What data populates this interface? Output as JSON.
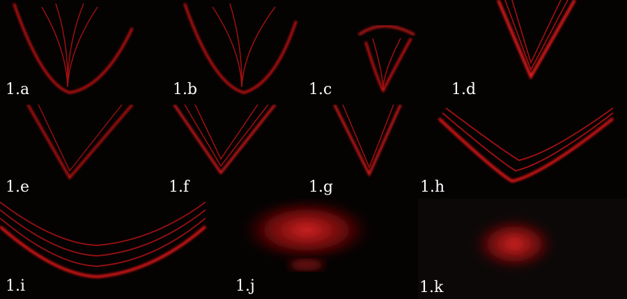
{
  "panels": [
    {
      "id": "a",
      "label": "1.a"
    },
    {
      "id": "b",
      "label": "1.b"
    },
    {
      "id": "c",
      "label": "1.c"
    },
    {
      "id": "d",
      "label": "1.d"
    },
    {
      "id": "e",
      "label": "1.e"
    },
    {
      "id": "f",
      "label": "1.f"
    },
    {
      "id": "g",
      "label": "1.g"
    },
    {
      "id": "h",
      "label": "1.h"
    },
    {
      "id": "i",
      "label": "1.i"
    },
    {
      "id": "j",
      "label": "1.j"
    },
    {
      "id": "k",
      "label": "1.k"
    }
  ],
  "colors": {
    "laser": "#ff1a1a",
    "background": "#000000",
    "label": "#ffffff"
  }
}
